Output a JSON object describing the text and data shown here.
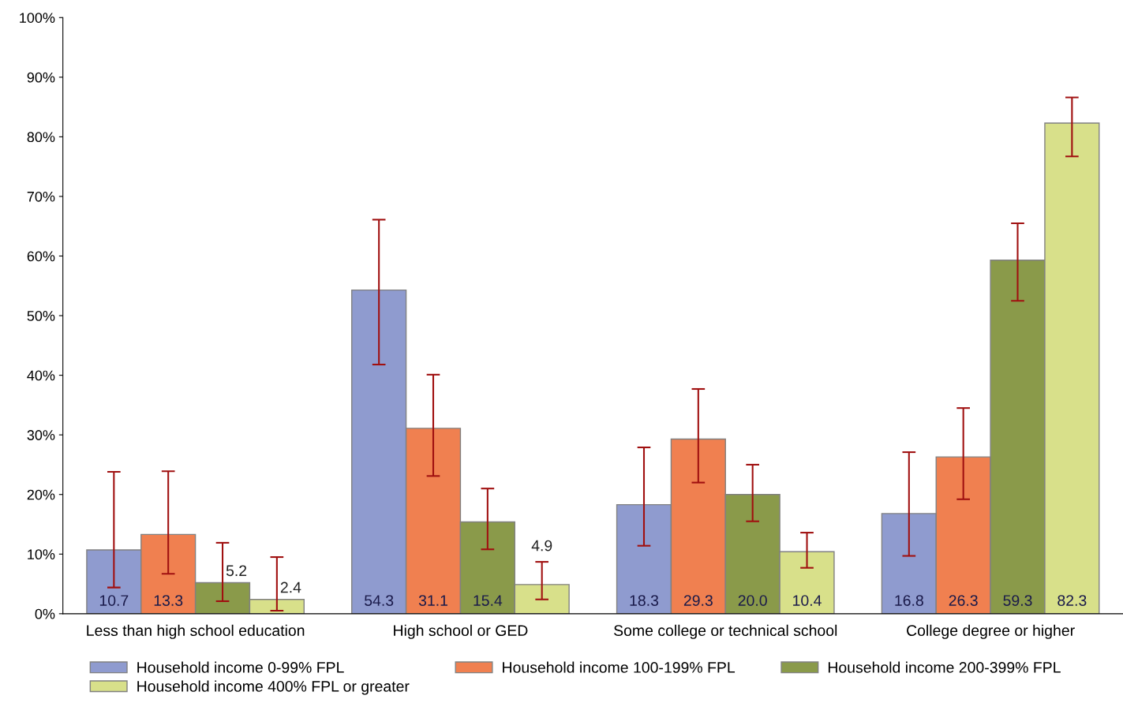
{
  "chart_data": {
    "type": "bar",
    "categories": [
      "Less than high school education",
      "High school or GED",
      "Some college or technical school",
      "College degree or higher"
    ],
    "ylim": [
      0,
      100
    ],
    "yticks": [
      {
        "value": 0,
        "label": "0%"
      },
      {
        "value": 10,
        "label": "10%"
      },
      {
        "value": 20,
        "label": "20%"
      },
      {
        "value": 30,
        "label": "30%"
      },
      {
        "value": 40,
        "label": "40%"
      },
      {
        "value": 50,
        "label": "50%"
      },
      {
        "value": 60,
        "label": "60%"
      },
      {
        "value": 70,
        "label": "70%"
      },
      {
        "value": 80,
        "label": "80%"
      },
      {
        "value": 90,
        "label": "90%"
      },
      {
        "value": 100,
        "label": "100%"
      }
    ],
    "grid": false,
    "legend": "bottom",
    "series": [
      {
        "name": "Household income 0-99% FPL",
        "color": "#8f9bcf",
        "values": [
          10.7,
          54.3,
          18.3,
          16.8
        ],
        "value_labels": [
          "10.7",
          "54.3",
          "18.3",
          "16.8"
        ],
        "errors": [
          [
            4.4,
            23.8
          ],
          [
            41.8,
            66.1
          ],
          [
            11.4,
            27.9
          ],
          [
            9.7,
            27.1
          ]
        ]
      },
      {
        "name": "Household income 100-199% FPL",
        "color": "#f08050",
        "values": [
          13.3,
          31.1,
          29.3,
          26.3
        ],
        "value_labels": [
          "13.3",
          "31.1",
          "29.3",
          "26.3"
        ],
        "errors": [
          [
            6.7,
            23.9
          ],
          [
            23.1,
            40.1
          ],
          [
            22.0,
            37.7
          ],
          [
            19.2,
            34.5
          ]
        ]
      },
      {
        "name": "Household income 200-399% FPL",
        "color": "#8a9a4a",
        "values": [
          5.2,
          15.4,
          20.0,
          59.3
        ],
        "value_labels": [
          "5.2",
          "15.4",
          "20.0",
          "59.3"
        ],
        "errors": [
          [
            2.1,
            11.9
          ],
          [
            10.8,
            21.0
          ],
          [
            15.5,
            25.0
          ],
          [
            52.5,
            65.5
          ]
        ]
      },
      {
        "name": "Household income 400% FPL or greater",
        "color": "#d8e08a",
        "values": [
          2.4,
          4.9,
          10.4,
          82.3
        ],
        "value_labels": [
          "2.4",
          "4.9",
          "10.4",
          "82.3"
        ],
        "errors": [
          [
            0.5,
            9.5
          ],
          [
            2.4,
            8.7
          ],
          [
            7.7,
            13.6
          ],
          [
            76.7,
            86.6
          ]
        ]
      }
    ]
  }
}
